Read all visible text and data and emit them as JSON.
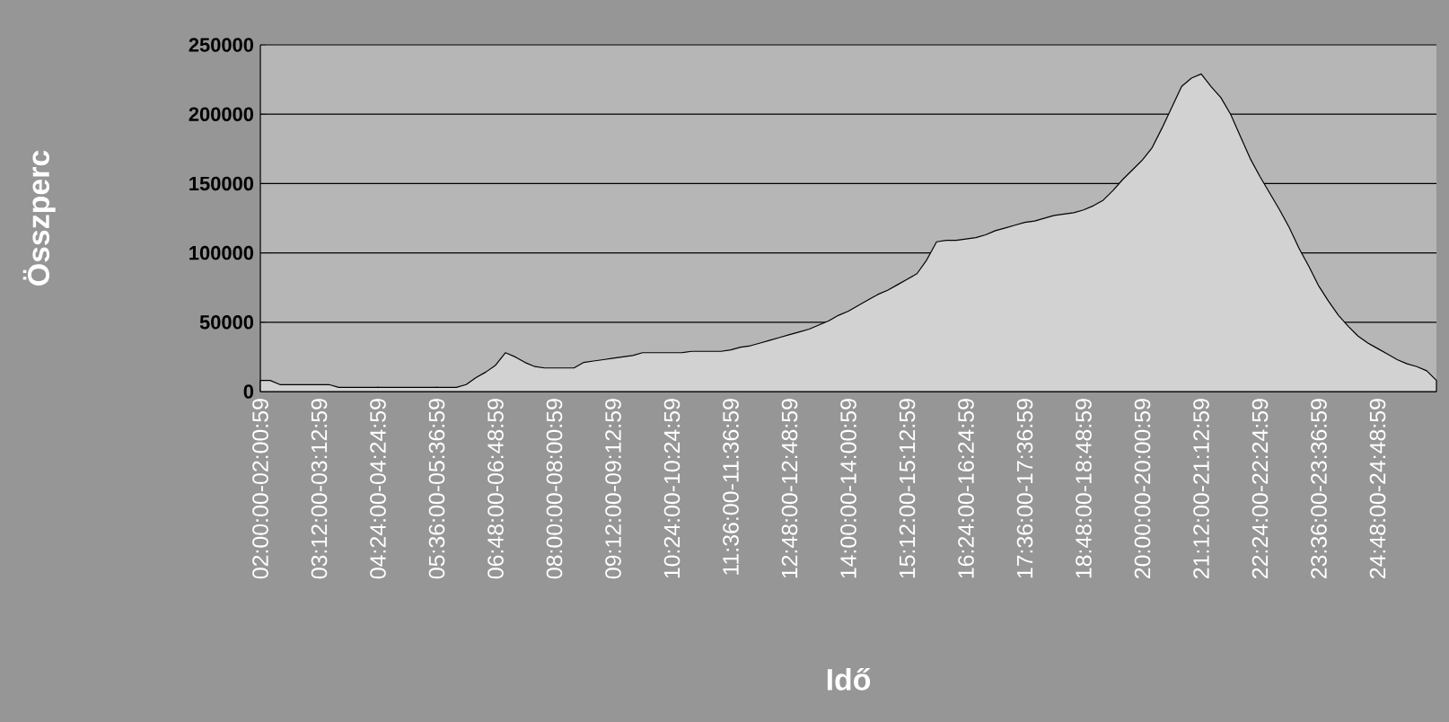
{
  "chart_data": {
    "type": "area",
    "xlabel": "Idő",
    "ylabel": "Összperc",
    "categories": [
      "02:00:00-02:00:59",
      null,
      null,
      null,
      null,
      null,
      "03:12:00-03:12:59",
      null,
      null,
      null,
      null,
      null,
      "04:24:00-04:24:59",
      null,
      null,
      null,
      null,
      null,
      "05:36:00-05:36:59",
      null,
      null,
      null,
      null,
      null,
      "06:48:00-06:48:59",
      null,
      null,
      null,
      null,
      null,
      "08:00:00-08:00:59",
      null,
      null,
      null,
      null,
      null,
      "09:12:00-09:12:59",
      null,
      null,
      null,
      null,
      null,
      "10:24:00-10:24:59",
      null,
      null,
      null,
      null,
      null,
      "11:36:00-11:36:59",
      null,
      null,
      null,
      null,
      null,
      "12:48:00-12:48:59",
      null,
      null,
      null,
      null,
      null,
      "14:00:00-14:00:59",
      null,
      null,
      null,
      null,
      null,
      "15:12:00-15:12:59",
      null,
      null,
      null,
      null,
      null,
      "16:24:00-16:24:59",
      null,
      null,
      null,
      null,
      null,
      "17:36:00-17:36:59",
      null,
      null,
      null,
      null,
      null,
      "18:48:00-18:48:59",
      null,
      null,
      null,
      null,
      null,
      "20:00:00-20:00:59",
      null,
      null,
      null,
      null,
      null,
      "21:12:00-21:12:59",
      null,
      null,
      null,
      null,
      null,
      "22:24:00-22:24:59",
      null,
      null,
      null,
      null,
      null,
      "23:36:00-23:36:59",
      null,
      null,
      null,
      null,
      null,
      "24:48:00-24:48:59",
      null,
      null,
      null,
      null,
      null,
      null
    ],
    "values": [
      8000,
      8000,
      5000,
      5000,
      5000,
      5000,
      5000,
      5000,
      3000,
      3000,
      3000,
      3000,
      3000,
      3000,
      3000,
      3000,
      3000,
      3000,
      3000,
      3000,
      3000,
      5000,
      10000,
      14000,
      19000,
      28000,
      25000,
      21000,
      18000,
      17000,
      17000,
      17000,
      17000,
      21000,
      22000,
      23000,
      24000,
      25000,
      26000,
      28000,
      28000,
      28000,
      28000,
      28000,
      29000,
      29000,
      29000,
      29000,
      30000,
      32000,
      33000,
      35000,
      37000,
      39000,
      41000,
      43000,
      45000,
      48000,
      51000,
      55000,
      58000,
      62000,
      66000,
      70000,
      73000,
      77000,
      81000,
      85000,
      95000,
      108000,
      109000,
      109000,
      110000,
      111000,
      113000,
      116000,
      118000,
      120000,
      122000,
      123000,
      125000,
      127000,
      128000,
      129000,
      131000,
      134000,
      138000,
      145000,
      153000,
      160000,
      167000,
      176000,
      190000,
      205000,
      220000,
      226000,
      229000,
      220000,
      212000,
      200000,
      184000,
      168000,
      155000,
      143000,
      131000,
      118000,
      103000,
      90000,
      76000,
      65000,
      55000,
      47000,
      40000,
      35000,
      31000,
      27000,
      23000,
      20000,
      18000,
      15000,
      8000
    ],
    "color": "#d2d2d2",
    "ylim": [
      0,
      250000
    ],
    "yticks": [
      0,
      50000,
      100000,
      150000,
      200000,
      250000
    ],
    "grid": "y"
  }
}
